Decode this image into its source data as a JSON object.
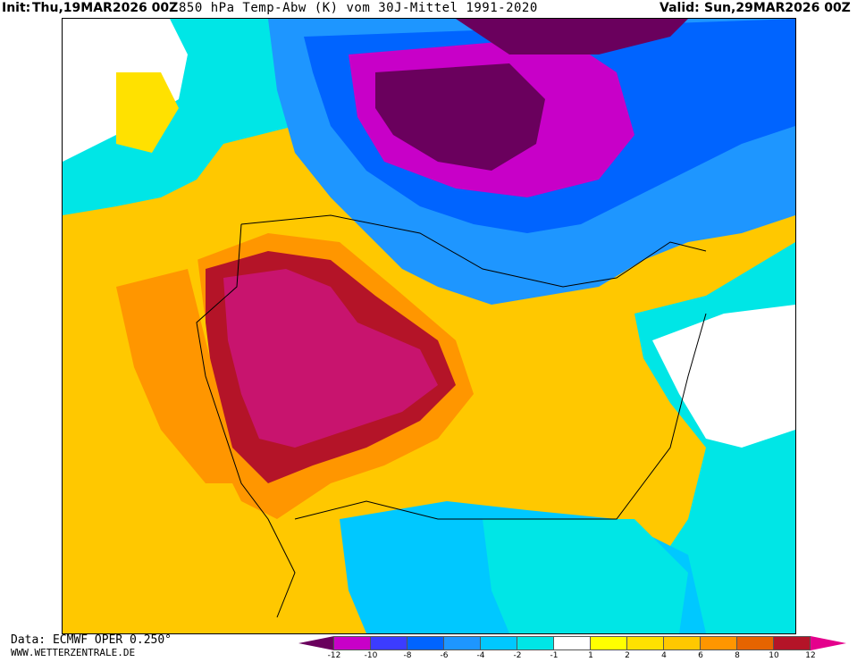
{
  "header": {
    "init_label": "Init:",
    "init_date": "Thu,19MAR2026 00Z",
    "title": "850 hPa Temp-Abw (K) vom 30J-Mittel 1991-2020",
    "valid_label": "Valid:",
    "valid_date": "Sun,29MAR2026 00Z"
  },
  "footer": {
    "data_source": "Data: ECMWF OPER 0.250°",
    "website": "WWW.WETTERZENTRALE.DE"
  },
  "colorbar": {
    "labels": [
      "-12",
      "-10",
      "-8",
      "-6",
      "-4",
      "-2",
      "-1",
      "1",
      "2",
      "4",
      "6",
      "8",
      "10",
      "12"
    ],
    "colors": [
      "#6a005d",
      "#c800c8",
      "#3c3cff",
      "#0064ff",
      "#1e96ff",
      "#00c8ff",
      "#00e6e6",
      "#ffffff",
      "#ffff00",
      "#ffe100",
      "#ffc800",
      "#ff9600",
      "#e66400",
      "#b41428",
      "#e4008c"
    ]
  }
}
